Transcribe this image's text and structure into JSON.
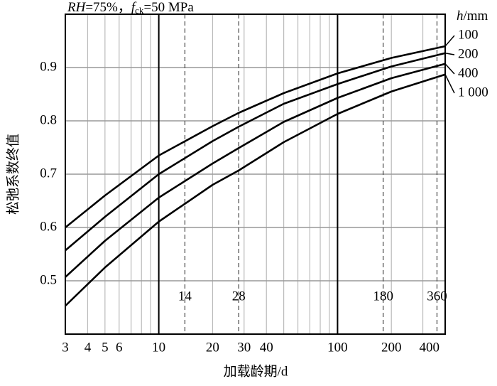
{
  "chart_data": {
    "type": "line",
    "title_parts": [
      "RH",
      "=75%，",
      "f",
      "ck",
      "=50 MPa"
    ],
    "x_label": "加载龄期/d",
    "y_label": "松弛系数终值",
    "legend_title_parts": [
      "h",
      "/mm"
    ],
    "x": [
      3,
      5,
      10,
      20,
      28,
      50,
      100,
      200,
      400
    ],
    "series": [
      {
        "name": "100",
        "color": "#000000",
        "values": [
          0.6,
          0.66,
          0.735,
          0.79,
          0.815,
          0.852,
          0.889,
          0.918,
          0.94
        ]
      },
      {
        "name": "200",
        "color": "#000000",
        "values": [
          0.557,
          0.62,
          0.7,
          0.762,
          0.789,
          0.832,
          0.869,
          0.902,
          0.927
        ]
      },
      {
        "name": "400",
        "color": "#000000",
        "values": [
          0.507,
          0.575,
          0.656,
          0.72,
          0.749,
          0.798,
          0.843,
          0.88,
          0.907
        ]
      },
      {
        "name": "1 000",
        "color": "#000000",
        "values": [
          0.453,
          0.525,
          0.611,
          0.68,
          0.707,
          0.76,
          0.813,
          0.855,
          0.887
        ]
      }
    ],
    "xlog": true,
    "xlim": [
      3,
      400
    ],
    "ylim": [
      0.4,
      1.0
    ],
    "xticks": [
      3,
      4,
      5,
      6,
      10,
      20,
      30,
      40,
      100,
      200,
      400
    ],
    "yticks": [
      0.5,
      0.6,
      0.7,
      0.8,
      0.9
    ],
    "xminor": [
      3,
      4,
      5,
      6,
      7,
      8,
      9,
      20,
      30,
      40,
      50,
      60,
      70,
      80,
      90,
      200,
      300,
      400
    ],
    "xmajor": [
      10,
      100
    ],
    "markers": [
      14,
      28,
      180,
      360
    ],
    "grid": true
  }
}
